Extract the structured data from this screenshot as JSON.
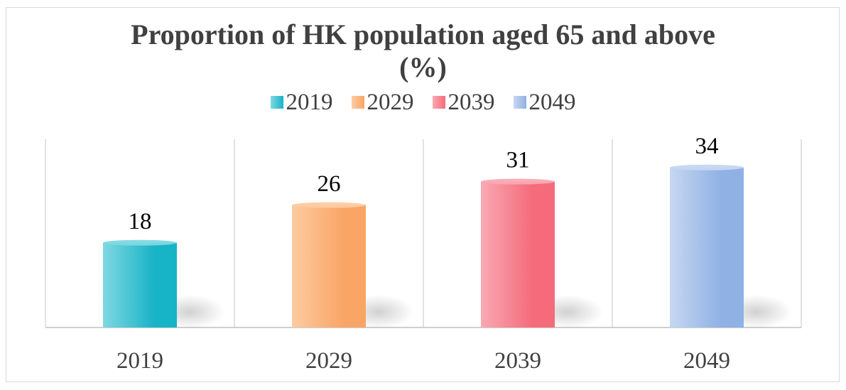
{
  "chart_data": {
    "type": "bar",
    "title": "Proportion of HK population aged 65 and above (%)",
    "categories": [
      "2019",
      "2029",
      "2039",
      "2049"
    ],
    "values": [
      18,
      26,
      31,
      34
    ],
    "legend": [
      "2019",
      "2029",
      "2039",
      "2049"
    ],
    "legend_position": "top",
    "colors": [
      "#17b3c6",
      "#f9a566",
      "#f56b7b",
      "#8fb1e4"
    ],
    "colors_light": [
      "#7fd8e2",
      "#fdcba1",
      "#f9a9b3",
      "#c6d7f2"
    ],
    "xlabel": "",
    "ylabel": "",
    "ylim": [
      0,
      40
    ],
    "grid": "vertical category separators",
    "data_labels": true
  }
}
